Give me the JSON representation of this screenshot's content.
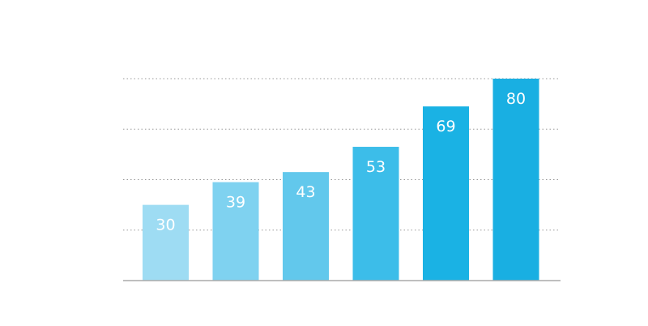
{
  "chart_data": {
    "type": "bar",
    "categories": [
      "",
      "",
      "",
      "",
      "",
      ""
    ],
    "values": [
      30,
      39,
      43,
      53,
      69,
      80
    ],
    "labels": [
      "30",
      "39",
      "43",
      "53",
      "69",
      "80"
    ],
    "ylim": [
      0,
      80
    ],
    "gridlines": [
      20,
      40,
      60,
      80
    ],
    "grid": "horizontal-dotted",
    "colors": [
      "#9edcf3",
      "#7fd2f0",
      "#62c8ec",
      "#3cbde9",
      "#1ab2e4",
      "#19afe2"
    ],
    "axis_color": "#aaaaaa",
    "grid_color": "#999999",
    "title": "",
    "xlabel": "",
    "ylabel": ""
  }
}
